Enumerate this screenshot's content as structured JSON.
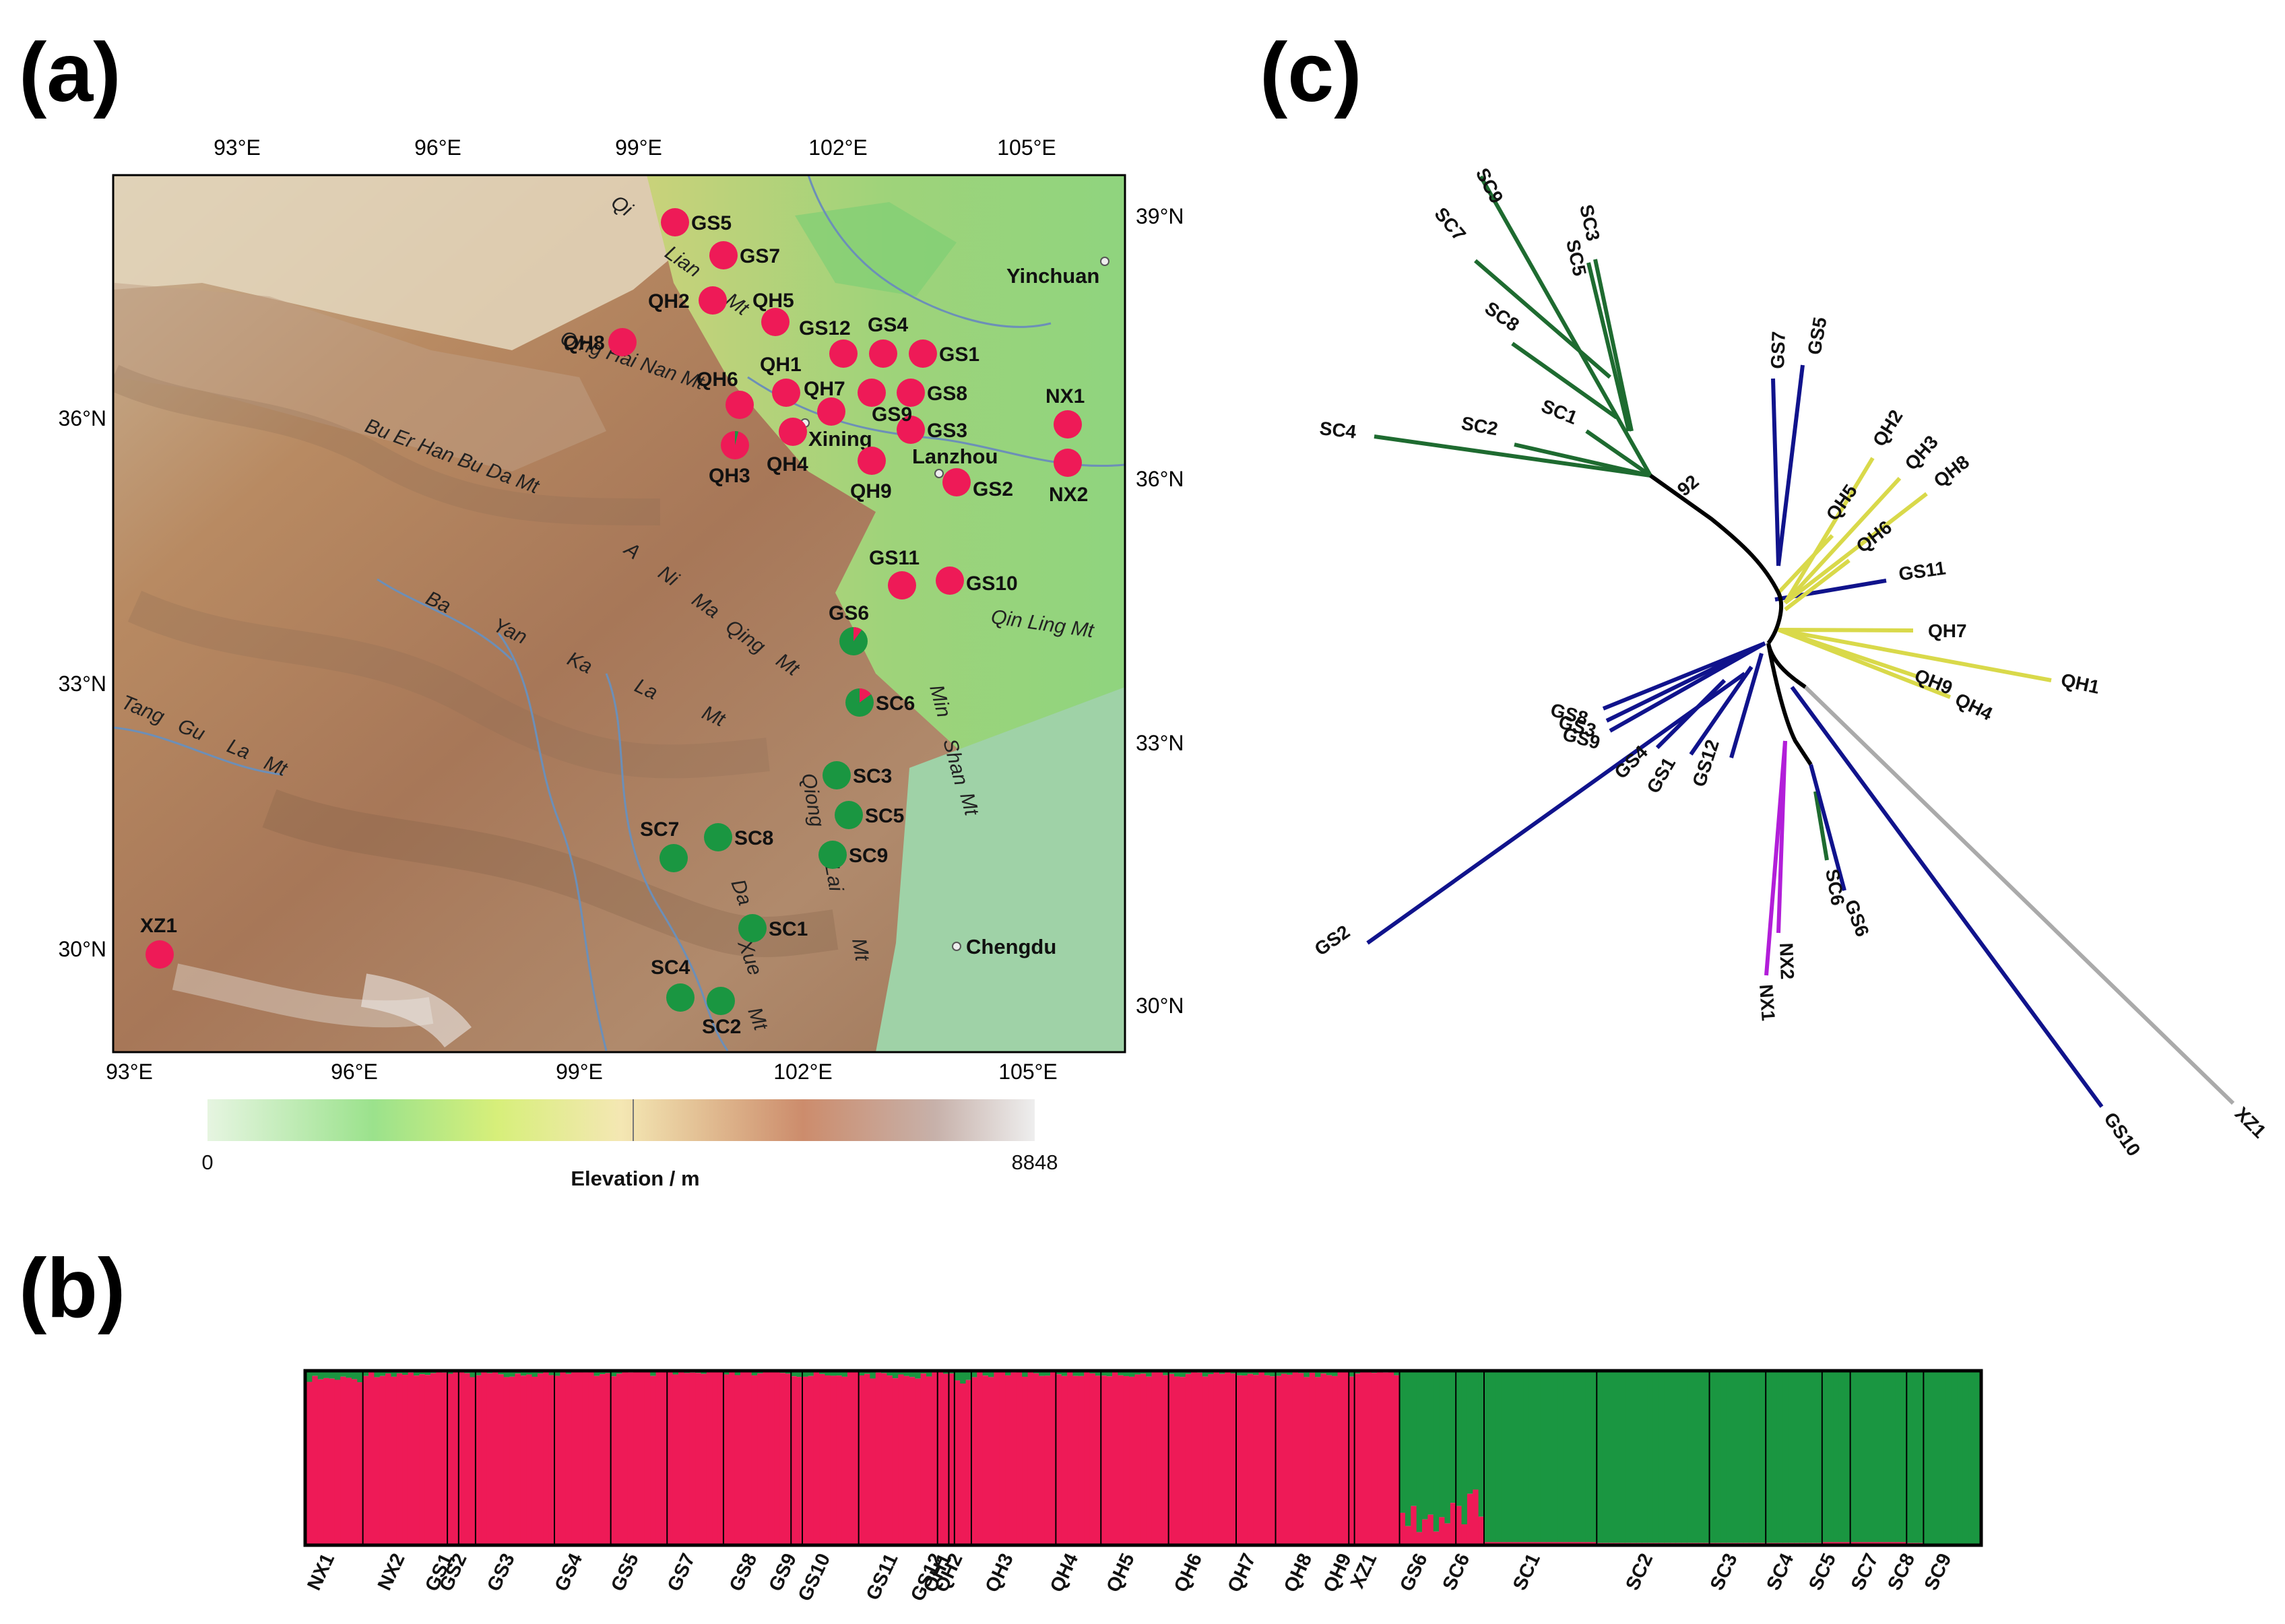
{
  "panels": {
    "a": "(a)",
    "b": "(b)",
    "c": "(c)"
  },
  "map": {
    "lon_ticks": [
      "93°E",
      "96°E",
      "99°E",
      "102°E",
      "105°E"
    ],
    "lat_ticks_left": [
      "36°N",
      "33°N",
      "30°N"
    ],
    "lat_ticks_right": [
      "39°N",
      "36°N",
      "33°N",
      "30°N"
    ],
    "legend": {
      "title": "Elevation / m",
      "min": "0",
      "max": "8848"
    },
    "cities": [
      "Yinchuan",
      "Xining",
      "Lanzhou",
      "Chengdu"
    ],
    "mountains": [
      "Qi",
      "Lian",
      "Mt",
      "Qing Hai Nan Mt",
      "Bu Er Han Bu Da Mt",
      "A",
      "Ni",
      "Ma",
      "Qing",
      "Mt",
      "Ba",
      "Yan",
      "Ka",
      "La",
      "Mt",
      "Tang",
      "Gu",
      "La",
      "Mt",
      "Qin Ling Mt",
      "Min",
      "Shan",
      "Mt",
      "Qiong",
      "Lai",
      "Mt",
      "Da",
      "Xue",
      "Mt"
    ],
    "sites": [
      {
        "name": "GS5",
        "red": 1
      },
      {
        "name": "GS7",
        "red": 1
      },
      {
        "name": "QH2",
        "red": 1
      },
      {
        "name": "QH5",
        "red": 1
      },
      {
        "name": "GS12",
        "red": 1
      },
      {
        "name": "GS4",
        "red": 1
      },
      {
        "name": "GS1",
        "red": 1
      },
      {
        "name": "QH8",
        "red": 1
      },
      {
        "name": "QH1",
        "red": 1
      },
      {
        "name": "QH6",
        "red": 1
      },
      {
        "name": "QH7",
        "red": 1
      },
      {
        "name": "GS8",
        "red": 1
      },
      {
        "name": "GS9",
        "red": 1
      },
      {
        "name": "GS3",
        "red": 1
      },
      {
        "name": "QH3",
        "red": 0.96
      },
      {
        "name": "QH4",
        "red": 1
      },
      {
        "name": "QH9",
        "red": 1
      },
      {
        "name": "GS2",
        "red": 1
      },
      {
        "name": "NX1",
        "red": 1
      },
      {
        "name": "NX2",
        "red": 1
      },
      {
        "name": "GS11",
        "red": 1
      },
      {
        "name": "GS10",
        "red": 1
      },
      {
        "name": "GS6",
        "red": 0.1
      },
      {
        "name": "SC6",
        "red": 0.15
      },
      {
        "name": "SC3",
        "red": 0
      },
      {
        "name": "SC5",
        "red": 0
      },
      {
        "name": "SC8",
        "red": 0
      },
      {
        "name": "SC7",
        "red": 0
      },
      {
        "name": "SC9",
        "red": 0
      },
      {
        "name": "SC1",
        "red": 0
      },
      {
        "name": "SC4",
        "red": 0
      },
      {
        "name": "SC2",
        "red": 0
      },
      {
        "name": "XZ1",
        "red": 1
      }
    ]
  },
  "structure": {
    "colors": {
      "cluster1": "#ee1a57",
      "cluster2": "#1a9641"
    },
    "populations": [
      {
        "name": "NX1",
        "n": 10,
        "red": 0.96
      },
      {
        "name": "NX2",
        "n": 15,
        "red": 0.99
      },
      {
        "name": "GS1",
        "n": 2,
        "red": 0.99
      },
      {
        "name": "GS2",
        "n": 3,
        "red": 0.99
      },
      {
        "name": "GS3",
        "n": 14,
        "red": 0.99
      },
      {
        "name": "GS4",
        "n": 10,
        "red": 0.99
      },
      {
        "name": "GS5",
        "n": 10,
        "red": 0.99
      },
      {
        "name": "GS7",
        "n": 10,
        "red": 0.99
      },
      {
        "name": "GS8",
        "n": 12,
        "red": 0.99
      },
      {
        "name": "GS9",
        "n": 2,
        "red": 0.97
      },
      {
        "name": "GS10",
        "n": 10,
        "red": 0.99
      },
      {
        "name": "GS11",
        "n": 14,
        "red": 0.98
      },
      {
        "name": "GS12",
        "n": 2,
        "red": 0.99
      },
      {
        "name": "QH1",
        "n": 1,
        "red": 0.99
      },
      {
        "name": "QH2",
        "n": 3,
        "red": 0.95
      },
      {
        "name": "QH3",
        "n": 15,
        "red": 0.99
      },
      {
        "name": "QH4",
        "n": 8,
        "red": 0.99
      },
      {
        "name": "QH5",
        "n": 12,
        "red": 0.99
      },
      {
        "name": "QH6",
        "n": 12,
        "red": 0.99
      },
      {
        "name": "QH7",
        "n": 7,
        "red": 0.99
      },
      {
        "name": "QH8",
        "n": 13,
        "red": 0.99
      },
      {
        "name": "QH9",
        "n": 1,
        "red": 0.99
      },
      {
        "name": "XZ1",
        "n": 8,
        "red": 1.0
      },
      {
        "name": "GS6",
        "n": 10,
        "red": 0.1
      },
      {
        "name": "SC6",
        "n": 5,
        "red": 0.12
      },
      {
        "name": "SC1",
        "n": 20,
        "red": 0.01
      },
      {
        "name": "SC2",
        "n": 20,
        "red": 0.005
      },
      {
        "name": "SC3",
        "n": 10,
        "red": 0.005
      },
      {
        "name": "SC4",
        "n": 10,
        "red": 0.005
      },
      {
        "name": "SC5",
        "n": 5,
        "red": 0.01
      },
      {
        "name": "SC7",
        "n": 10,
        "red": 0.01
      },
      {
        "name": "SC8",
        "n": 3,
        "red": 0.005
      },
      {
        "name": "SC9",
        "n": 10,
        "red": 0.0
      }
    ]
  },
  "tree": {
    "bootstrap": "92",
    "colors": {
      "sc": "#1e6b30",
      "gs": "#10138c",
      "qh": "#d9d94a",
      "nx": "#b21ed9",
      "xz": "#aaaaaa",
      "core": "#000000"
    },
    "tips": [
      "SC9",
      "SC7",
      "SC3",
      "SC5",
      "SC8",
      "SC1",
      "SC2",
      "SC4",
      "GS7",
      "GS5",
      "QH2",
      "QH3",
      "QH8",
      "QH5",
      "QH6",
      "GS11",
      "QH7",
      "QH1",
      "QH9",
      "QH4",
      "GS8",
      "GS3",
      "GS9",
      "GS4",
      "GS1",
      "GS12",
      "GS2",
      "SC6",
      "GS6",
      "NX2",
      "NX1",
      "GS10",
      "XZ1"
    ]
  }
}
